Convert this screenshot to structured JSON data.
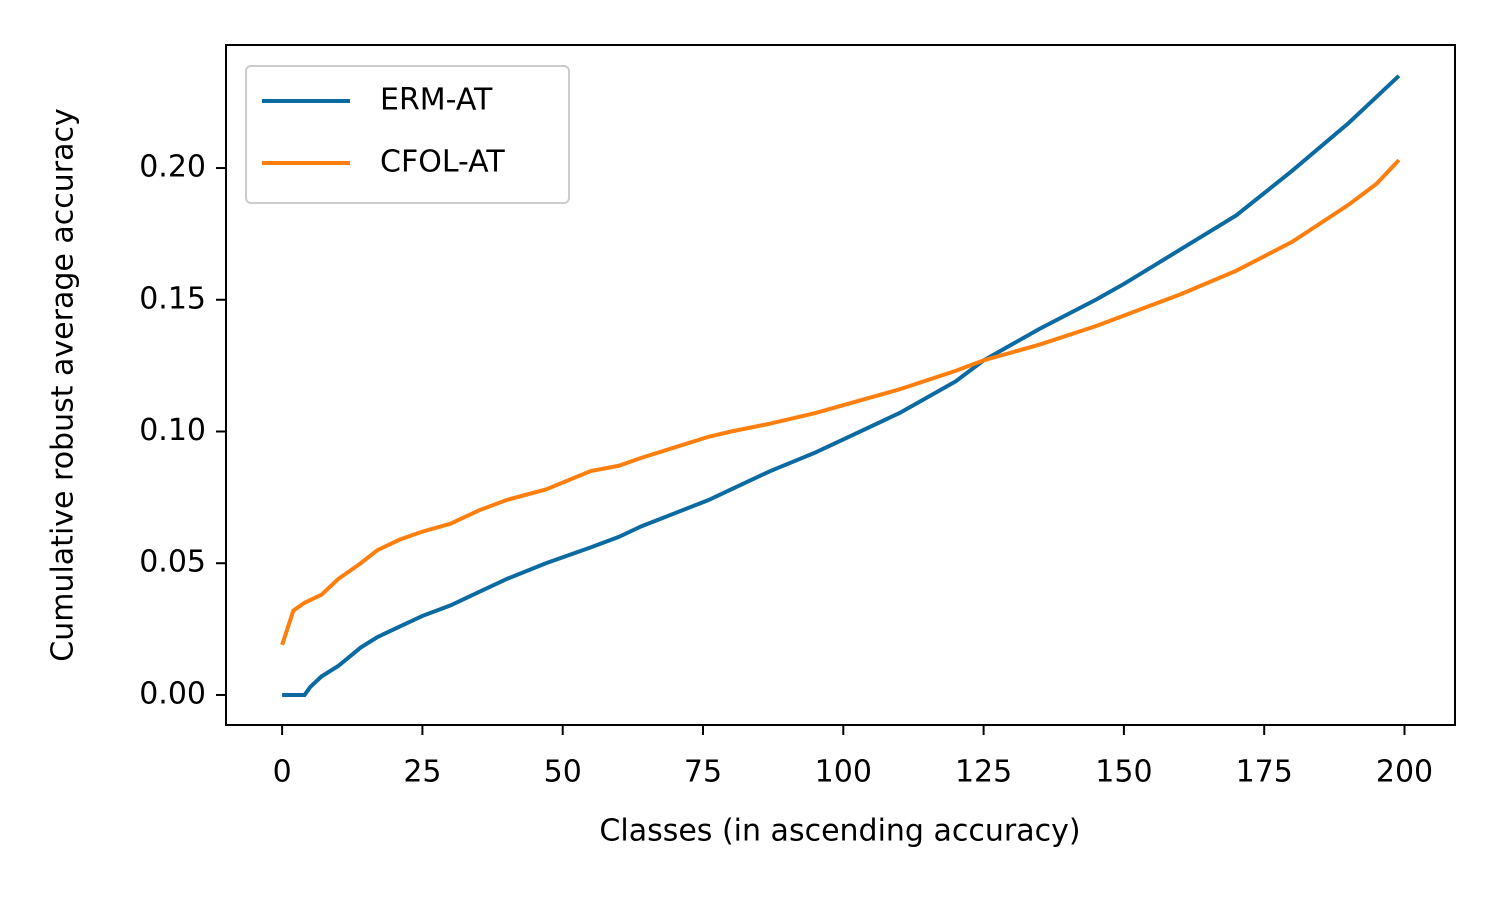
{
  "chart_data": {
    "type": "line",
    "xlabel": "Classes (in ascending accuracy)",
    "ylabel": "Cumulative robust average accuracy",
    "x": [
      0,
      2,
      4,
      5,
      7,
      10,
      14,
      17,
      21,
      25,
      30,
      35,
      40,
      47,
      55,
      60,
      64,
      70,
      76,
      80,
      87,
      95,
      100,
      110,
      120,
      125,
      135,
      145,
      150,
      160,
      170,
      180,
      190,
      195,
      199
    ],
    "series": [
      {
        "name": "ERM-AT",
        "color": "#0a6aa1",
        "values": [
          0,
          0,
          0,
          0.003,
          0.007,
          0.011,
          0.018,
          0.022,
          0.026,
          0.03,
          0.034,
          0.039,
          0.044,
          0.05,
          0.056,
          0.06,
          0.064,
          0.069,
          0.074,
          0.078,
          0.085,
          0.092,
          0.097,
          0.107,
          0.119,
          0.127,
          0.139,
          0.15,
          0.156,
          0.169,
          0.182,
          0.199,
          0.217,
          0.227,
          0.235
        ]
      },
      {
        "name": "CFOL-AT",
        "color": "#ff7f0e",
        "values": [
          0.019,
          0.032,
          0.035,
          0.036,
          0.038,
          0.044,
          0.05,
          0.055,
          0.059,
          0.062,
          0.065,
          0.07,
          0.074,
          0.078,
          0.085,
          0.087,
          0.09,
          0.094,
          0.098,
          0.1,
          0.103,
          0.107,
          0.11,
          0.116,
          0.123,
          0.127,
          0.133,
          0.14,
          0.144,
          0.152,
          0.161,
          0.172,
          0.186,
          0.194,
          0.203
        ]
      }
    ],
    "xlim": [
      -10,
      209
    ],
    "ylim": [
      -0.0114,
      0.2467
    ],
    "xticks": [
      0,
      25,
      50,
      75,
      100,
      125,
      150,
      175,
      200
    ],
    "yticks": [
      {
        "value": 0,
        "label": "0.00"
      },
      {
        "value": 0.05,
        "label": "0.05"
      },
      {
        "value": 0.1,
        "label": "0.10"
      },
      {
        "value": 0.15,
        "label": "0.15"
      },
      {
        "value": 0.2,
        "label": "0.20"
      }
    ],
    "legend": "upper-left"
  }
}
